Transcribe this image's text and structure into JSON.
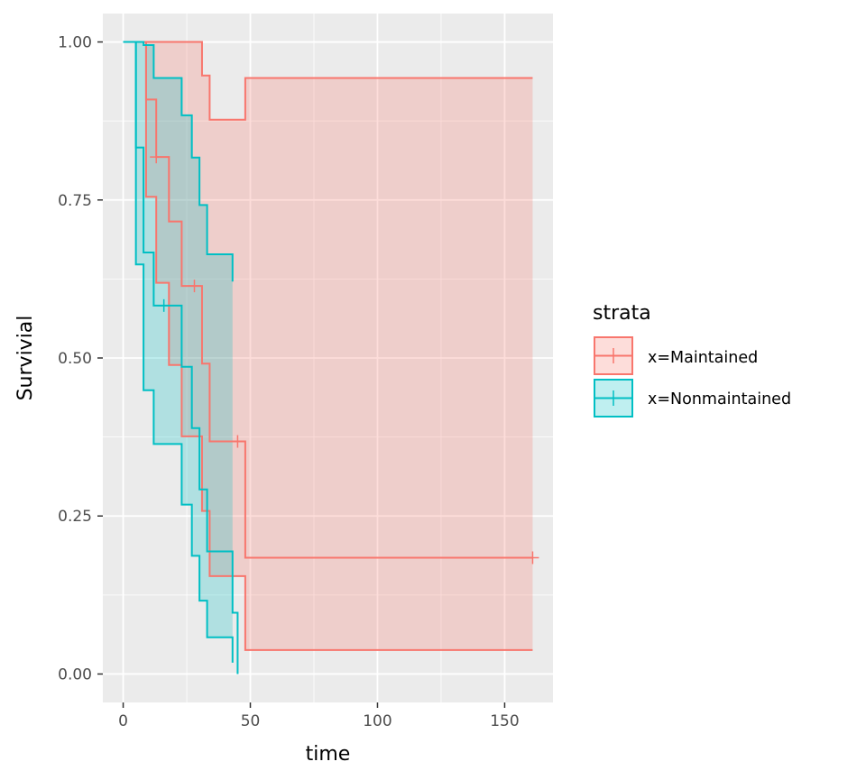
{
  "chart_data": {
    "type": "line",
    "subtype": "kaplan-meier step curve with confidence bands",
    "xlabel": "time",
    "ylabel": "Survivial",
    "xlim": [
      -8,
      169
    ],
    "ylim": [
      -0.045,
      1.045
    ],
    "x_ticks": [
      0,
      50,
      100,
      150
    ],
    "x_tick_labels": [
      "0",
      "50",
      "100",
      "150"
    ],
    "y_ticks": [
      0,
      0.25,
      0.5,
      0.75,
      1
    ],
    "y_tick_labels": [
      "0.00",
      "0.25",
      "0.50",
      "0.75",
      "1.00"
    ],
    "grid": true,
    "legend": {
      "title": "strata",
      "position": "right"
    },
    "series": [
      {
        "name": "x=Maintained",
        "color": "#F8766D",
        "surv": {
          "x": [
            0,
            9,
            13,
            18,
            23,
            31,
            34,
            48,
            161
          ],
          "y": [
            1.0,
            0.909,
            0.818,
            0.716,
            0.614,
            0.491,
            0.368,
            0.184,
            0.184
          ]
        },
        "upper": {
          "x": [
            0,
            23,
            31,
            33,
            34,
            48,
            161
          ],
          "y": [
            1.0,
            1.0,
            0.947,
            0.947,
            0.877,
            0.943,
            0.943
          ]
        },
        "lower": {
          "x": [
            0,
            9,
            13,
            18,
            23,
            31,
            34,
            48,
            161
          ],
          "y": [
            1.0,
            0.755,
            0.619,
            0.489,
            0.376,
            0.258,
            0.155,
            0.038,
            0.038
          ]
        },
        "censor": [
          {
            "x": 13,
            "y": 0.818
          },
          {
            "x": 28,
            "y": 0.614
          },
          {
            "x": 45,
            "y": 0.368
          },
          {
            "x": 161,
            "y": 0.184
          }
        ]
      },
      {
        "name": "x=Nonmaintained",
        "color": "#00BFC4",
        "surv": {
          "x": [
            0,
            5,
            8,
            12,
            23,
            27,
            30,
            33,
            43,
            45
          ],
          "y": [
            1.0,
            0.833,
            0.667,
            0.583,
            0.486,
            0.389,
            0.292,
            0.194,
            0.097,
            0.0
          ]
        },
        "upper": {
          "x": [
            0,
            8,
            12,
            23,
            27,
            30,
            33,
            43
          ],
          "y": [
            1.0,
            0.995,
            0.943,
            0.884,
            0.817,
            0.742,
            0.664,
            0.621
          ]
        },
        "lower": {
          "x": [
            0,
            5,
            8,
            12,
            23,
            27,
            30,
            33,
            43
          ],
          "y": [
            1.0,
            0.648,
            0.449,
            0.364,
            0.268,
            0.187,
            0.116,
            0.058,
            0.018
          ]
        },
        "censor": [
          {
            "x": 16,
            "y": 0.583
          }
        ]
      }
    ]
  }
}
